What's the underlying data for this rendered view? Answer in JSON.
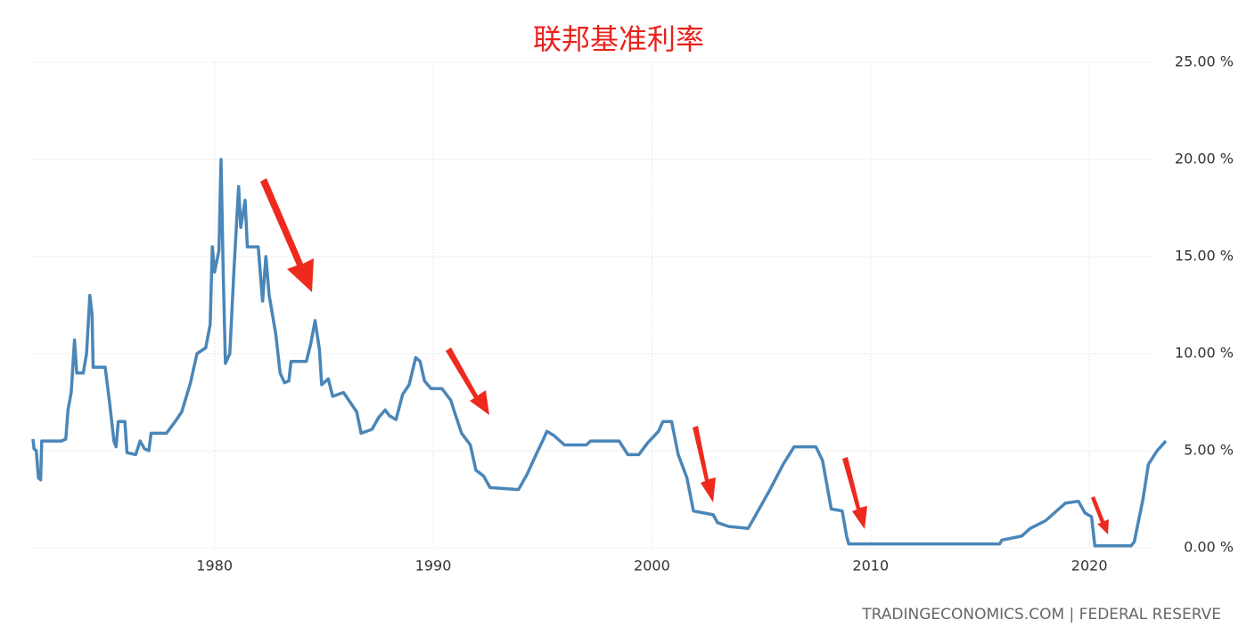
{
  "chart_data": {
    "type": "line",
    "title": "联邦基准利率",
    "source": "TRADINGECONOMICS.COM | FEDERAL RESERVE",
    "color": "#4a86b8",
    "grid": true,
    "xlim": [
      1971.7,
      2023.58
    ],
    "xticks": [
      1980,
      1990,
      2000,
      2010,
      2020
    ],
    "ylim": [
      0,
      25
    ],
    "yticks": [
      {
        "value": 0,
        "label": "0.00 %"
      },
      {
        "value": 5,
        "label": "5.00 %"
      },
      {
        "value": 10,
        "label": "10.00 %"
      },
      {
        "value": 15,
        "label": "15.00 %"
      },
      {
        "value": 20,
        "label": "20.00 %"
      },
      {
        "value": 25,
        "label": "25.00 %"
      }
    ],
    "x": [
      1971.7,
      1971.75,
      1971.85,
      1971.95,
      1972.05,
      1972.1,
      1973.0,
      1973.2,
      1973.3,
      1973.45,
      1973.6,
      1973.7,
      1974.0,
      1974.15,
      1974.3,
      1974.4,
      1974.45,
      1975.0,
      1975.2,
      1975.4,
      1975.5,
      1975.6,
      1975.9,
      1976.0,
      1976.4,
      1976.6,
      1976.8,
      1977.0,
      1977.1,
      1977.8,
      1978.2,
      1978.5,
      1978.9,
      1979.2,
      1979.6,
      1979.8,
      1979.9,
      1980.0,
      1980.2,
      1980.3,
      1980.4,
      1980.5,
      1980.7,
      1980.9,
      1981.1,
      1981.2,
      1981.4,
      1981.5,
      1982.0,
      1982.2,
      1982.35,
      1982.5,
      1982.8,
      1983.0,
      1983.2,
      1983.4,
      1983.5,
      1984.2,
      1984.4,
      1984.6,
      1984.8,
      1984.9,
      1985.2,
      1985.4,
      1985.9,
      1986.5,
      1986.7,
      1987.2,
      1987.5,
      1987.8,
      1988.0,
      1988.3,
      1988.6,
      1988.9,
      1989.2,
      1989.4,
      1989.6,
      1989.9,
      1990.4,
      1990.8,
      1991.0,
      1991.3,
      1991.7,
      1991.95,
      1992.3,
      1992.6,
      1993.9,
      1994.3,
      1994.7,
      1995.0,
      1995.2,
      1995.5,
      1996.0,
      1997.0,
      1997.2,
      1998.5,
      1998.9,
      1999.4,
      1999.8,
      2000.3,
      2000.5,
      2000.9,
      2001.2,
      2001.6,
      2001.9,
      2002.8,
      2003.0,
      2003.5,
      2004.4,
      2004.8,
      2005.4,
      2006.0,
      2006.5,
      2007.5,
      2007.8,
      2008.2,
      2008.7,
      2008.9,
      2009.0,
      2015.9,
      2016.0,
      2016.9,
      2017.3,
      2018.0,
      2018.9,
      2019.5,
      2019.8,
      2020.1,
      2020.25,
      2021.9,
      2022.05,
      2022.45,
      2022.7,
      2023.1,
      2023.5
    ],
    "values": [
      5.6,
      5.1,
      5.0,
      3.6,
      3.5,
      5.5,
      5.5,
      5.6,
      7.1,
      8.0,
      10.7,
      9.0,
      9.0,
      10.0,
      13.0,
      12.0,
      9.3,
      9.3,
      7.5,
      5.5,
      5.2,
      6.5,
      6.5,
      4.9,
      4.8,
      5.5,
      5.1,
      5.0,
      5.9,
      5.9,
      6.5,
      7.0,
      8.5,
      10.0,
      10.3,
      11.5,
      15.5,
      14.2,
      15.3,
      20.0,
      14.0,
      9.5,
      10.0,
      14.5,
      18.6,
      16.5,
      17.9,
      15.5,
      15.5,
      12.7,
      15.0,
      13.0,
      11.0,
      9.0,
      8.5,
      8.6,
      9.6,
      9.6,
      10.5,
      11.7,
      10.2,
      8.4,
      8.7,
      7.8,
      8.0,
      7.0,
      5.9,
      6.1,
      6.7,
      7.1,
      6.8,
      6.6,
      7.9,
      8.4,
      9.8,
      9.6,
      8.6,
      8.2,
      8.2,
      7.6,
      6.9,
      5.9,
      5.3,
      4.0,
      3.7,
      3.1,
      3.0,
      3.8,
      4.8,
      5.5,
      6.0,
      5.8,
      5.3,
      5.3,
      5.5,
      5.5,
      4.8,
      4.8,
      5.4,
      6.0,
      6.5,
      6.5,
      4.8,
      3.6,
      1.9,
      1.7,
      1.3,
      1.1,
      1.0,
      1.8,
      3.0,
      4.3,
      5.2,
      5.2,
      4.5,
      2.0,
      1.9,
      0.6,
      0.2,
      0.2,
      0.4,
      0.6,
      1.0,
      1.4,
      2.3,
      2.4,
      1.8,
      1.6,
      0.1,
      0.1,
      0.3,
      2.5,
      4.3,
      5.0,
      5.5
    ]
  }
}
